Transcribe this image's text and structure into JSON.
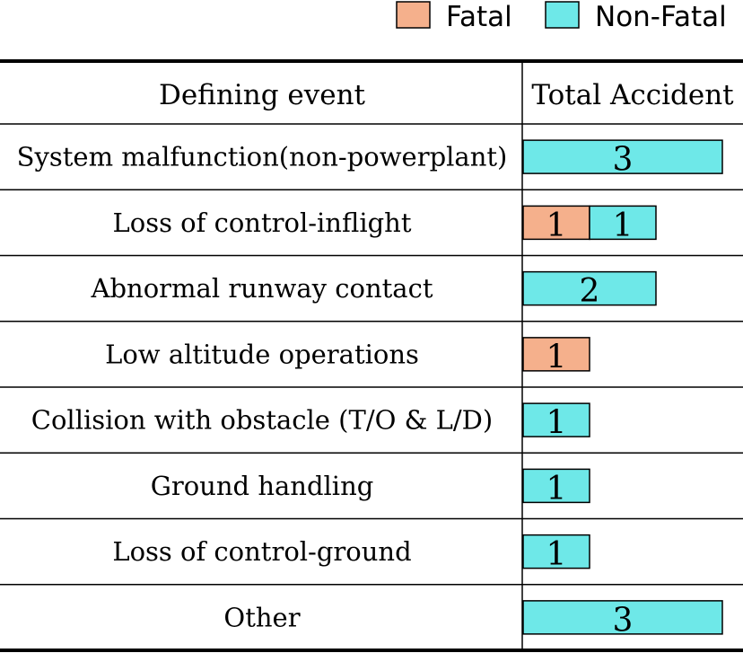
{
  "chart_data": {
    "type": "bar",
    "orientation": "horizontal",
    "stacked": true,
    "header": {
      "category_column": "Defining event",
      "value_column": "Total Accident"
    },
    "legend": {
      "position": "top-right",
      "items": [
        {
          "name": "Fatal",
          "color": "#f5b08c"
        },
        {
          "name": "Non-Fatal",
          "color": "#6ee8e8"
        }
      ]
    },
    "categories": [
      "System malfunction(non-powerplant)",
      "Loss of control-inflight",
      "Abnormal runway contact",
      "Low altitude operations",
      "Collision with obstacle (T/O & L/D)",
      "Ground handling",
      "Loss of control-ground",
      "Other"
    ],
    "series": [
      {
        "name": "Fatal",
        "color": "#f5b08c",
        "values": [
          0,
          1,
          0,
          1,
          0,
          0,
          0,
          0
        ]
      },
      {
        "name": "Non-Fatal",
        "color": "#6ee8e8",
        "values": [
          3,
          1,
          2,
          0,
          1,
          1,
          1,
          3
        ]
      }
    ],
    "xlim": [
      0,
      3
    ],
    "grid": false
  }
}
